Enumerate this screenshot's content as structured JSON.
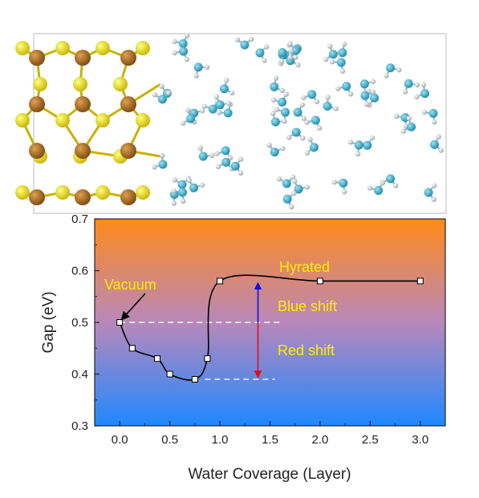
{
  "chart_data": {
    "type": "line",
    "title": "",
    "xlabel": "Water Coverage (Layer)",
    "ylabel": "Gap (eV)",
    "xlim": [
      -0.25,
      3.25
    ],
    "ylim": [
      0.3,
      0.7
    ],
    "x_ticks": [
      "0.0",
      "0.5",
      "1.0",
      "1.5",
      "2.0",
      "2.5",
      "3.0"
    ],
    "y_ticks": [
      "0.3",
      "0.4",
      "0.5",
      "0.6",
      "0.7"
    ],
    "series": [
      {
        "x": [
          0.0,
          0.125,
          0.375,
          0.5,
          0.75,
          0.875,
          1.0,
          2.0,
          3.0
        ],
        "y": [
          0.5,
          0.45,
          0.43,
          0.4,
          0.39,
          0.43,
          0.58,
          0.58,
          0.58
        ]
      }
    ],
    "annotations": {
      "vacuum": "Vacuum",
      "hydrated": "Hyrated",
      "blue_shift": "Blue shift",
      "red_shift": "Red shift"
    },
    "reference_lines": [
      {
        "y": 0.5,
        "x_range": [
          0.0,
          1.6
        ],
        "style": "dashed"
      },
      {
        "y": 0.39,
        "x_range": [
          0.85,
          1.55
        ],
        "style": "dashed"
      }
    ],
    "arrows": [
      {
        "name": "blue-shift-arrow",
        "x": 1.38,
        "from_y": 0.5,
        "to_y": 0.58,
        "color": "#1010dd"
      },
      {
        "name": "red-shift-arrow",
        "x": 1.38,
        "from_y": 0.5,
        "to_y": 0.39,
        "color": "#dd1010"
      }
    ],
    "background_gradient": {
      "top": "#ff8a1a",
      "middle": "#b888bb",
      "bottom": "#1e88ff"
    },
    "grid": false,
    "legend": "none"
  },
  "colors": {
    "line": "#000000",
    "marker_fill": "#ffffff",
    "annotation_text": "#ffee00",
    "ref_line": "#ffffff"
  },
  "structure_image": {
    "icon": "molecular-structure-illustration",
    "description_visible": false
  }
}
